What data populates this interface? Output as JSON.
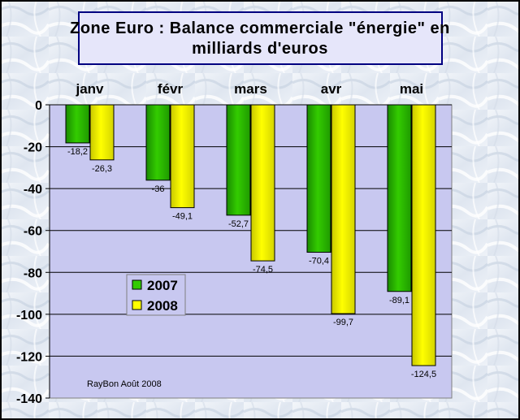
{
  "chart_data": {
    "type": "bar",
    "title_line1": "Zone Euro : Balance commerciale \"énergie\" en",
    "title_line2": "milliards d'euros",
    "categories": [
      "janv",
      "févr",
      "mars",
      "avr",
      "mai"
    ],
    "series": [
      {
        "name": "2007",
        "values": [
          -18.2,
          -36,
          -52.7,
          -70.4,
          -89.1
        ],
        "labels": [
          "-18,2",
          "-36",
          "-52,7",
          "-70,4",
          "-89,1"
        ],
        "color": "#33CC00"
      },
      {
        "name": "2008",
        "values": [
          -26.3,
          -49.1,
          -74.5,
          -99.7,
          -124.5
        ],
        "labels": [
          "-26,3",
          "-49,1",
          "-74,5",
          "-99,7",
          "-124,5"
        ],
        "color": "#FFFF00"
      }
    ],
    "y_ticks": [
      "0",
      "-20",
      "-40",
      "-60",
      "-80",
      "-100",
      "-120",
      "-140"
    ],
    "ylim": [
      -140,
      0
    ],
    "grid": true,
    "legend_position": "center-left",
    "annotation": "RayBon Août 2008",
    "colors": {
      "plot_background": "#C8C8F0",
      "title_box": "#E6E6FA",
      "title_border": "#000080"
    }
  }
}
